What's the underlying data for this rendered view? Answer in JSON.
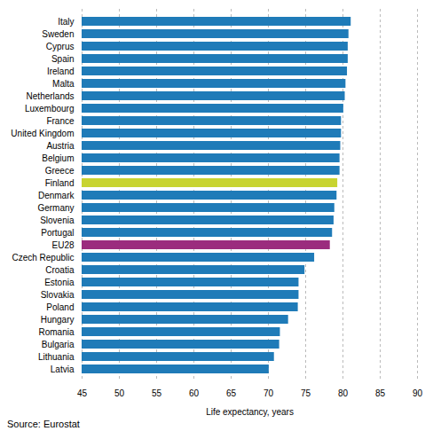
{
  "chart_data": {
    "type": "bar",
    "orientation": "horizontal",
    "categories": [
      "Italy",
      "Sweden",
      "Cyprus",
      "Spain",
      "Ireland",
      "Malta",
      "Netherlands",
      "Luxembourg",
      "France",
      "United Kingdom",
      "Austria",
      "Belgium",
      "Greece",
      "Finland",
      "Denmark",
      "Germany",
      "Slovenia",
      "Portugal",
      "EU28",
      "Czech Republic",
      "Croatia",
      "Estonia",
      "Slovakia",
      "Poland",
      "Hungary",
      "Romania",
      "Bulgaria",
      "Lithuania",
      "Latvia"
    ],
    "values": [
      81.1,
      80.8,
      80.7,
      80.7,
      80.6,
      80.4,
      80.3,
      80.1,
      79.8,
      79.8,
      79.7,
      79.6,
      79.6,
      79.3,
      79.2,
      78.9,
      78.8,
      78.6,
      78.3,
      76.2,
      74.9,
      74.1,
      74.1,
      74.0,
      72.7,
      71.6,
      71.5,
      70.8,
      70.1
    ],
    "colors": [
      "#1F7BB8",
      "#1F7BB8",
      "#1F7BB8",
      "#1F7BB8",
      "#1F7BB8",
      "#1F7BB8",
      "#1F7BB8",
      "#1F7BB8",
      "#1F7BB8",
      "#1F7BB8",
      "#1F7BB8",
      "#1F7BB8",
      "#1F7BB8",
      "#C8D430",
      "#1F7BB8",
      "#1F7BB8",
      "#1F7BB8",
      "#1F7BB8",
      "#9B2C7E",
      "#1F7BB8",
      "#1F7BB8",
      "#1F7BB8",
      "#1F7BB8",
      "#1F7BB8",
      "#1F7BB8",
      "#1F7BB8",
      "#1F7BB8",
      "#1F7BB8",
      "#1F7BB8"
    ],
    "xlabel": "Life expectancy, years",
    "xlim": [
      45,
      90
    ],
    "xticks": [
      45,
      50,
      55,
      60,
      65,
      70,
      75,
      80,
      85,
      90
    ],
    "grid": true,
    "annotations": [
      "Source: Eurostat"
    ]
  }
}
